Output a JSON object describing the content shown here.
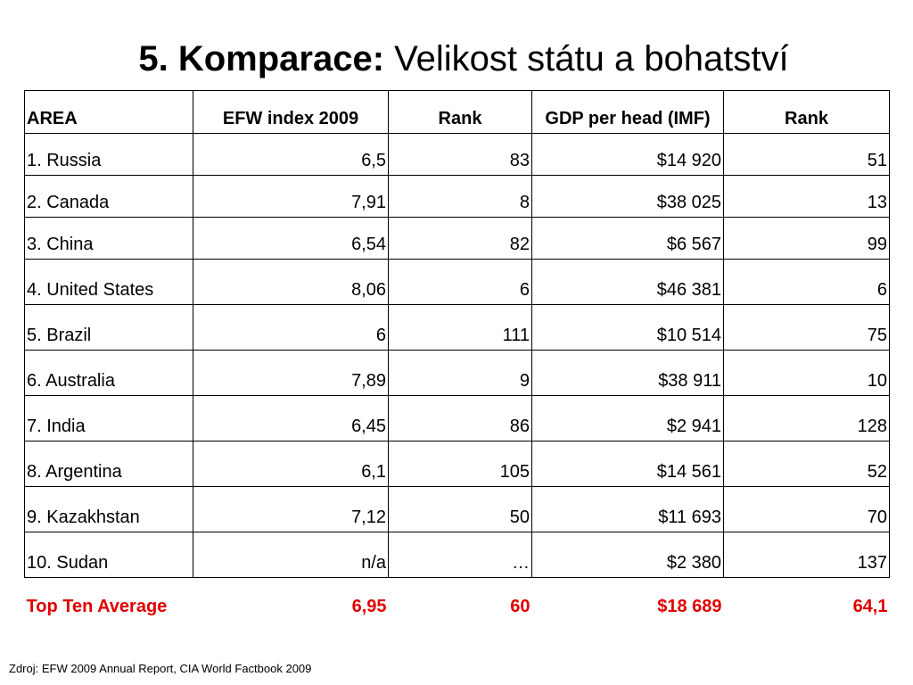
{
  "title": {
    "bold_part": "5. Komparace:",
    "normal_part": "Velikost státu a bohatství"
  },
  "table": {
    "headers": [
      "AREA",
      "EFW index 2009",
      "Rank",
      "GDP per head (IMF)",
      "Rank"
    ],
    "rows": [
      [
        "1. Russia",
        "6,5",
        "83",
        "$14 920",
        "51"
      ],
      [
        "2. Canada",
        "7,91",
        "8",
        "$38 025",
        "13"
      ],
      [
        "3. China",
        "6,54",
        "82",
        "$6 567",
        "99"
      ],
      [
        "4. United States",
        "8,06",
        "6",
        "$46 381",
        "6"
      ],
      [
        "5. Brazil",
        "6",
        "111",
        "$10 514",
        "75"
      ],
      [
        "6. Australia",
        "7,89",
        "9",
        "$38 911",
        "10"
      ],
      [
        "7. India",
        "6,45",
        "86",
        "$2 941",
        "128"
      ],
      [
        "8. Argentina",
        "6,1",
        "105",
        "$14 561",
        "52"
      ],
      [
        "9. Kazakhstan",
        "7,12",
        "50",
        "$11 693",
        "70"
      ],
      [
        "10. Sudan",
        "n/a",
        "…",
        "$2 380",
        "137"
      ]
    ],
    "footer": [
      "Top Ten Average",
      "6,95",
      "60",
      "$18 689",
      "64,1"
    ]
  },
  "source": "Zdroj: EFW 2009 Annual Report, CIA World Factbook 2009",
  "colors": {
    "footer_text": "#e00000",
    "border": "#000000"
  }
}
